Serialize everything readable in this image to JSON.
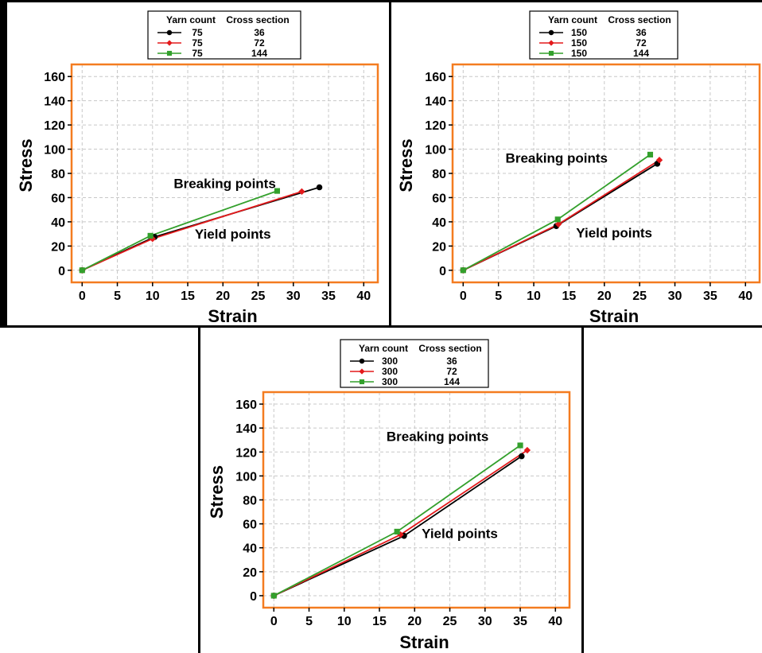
{
  "chart_data": [
    {
      "type": "line",
      "xlabel": "Strain",
      "ylabel": "Stress",
      "xlim": [
        -1.5,
        42
      ],
      "ylim": [
        -10,
        170
      ],
      "xticks": [
        0,
        5,
        10,
        15,
        20,
        25,
        30,
        35,
        40
      ],
      "yticks": [
        0,
        20,
        40,
        60,
        80,
        100,
        120,
        140,
        160
      ],
      "grid": true,
      "legend": {
        "placement": "top-center",
        "headers": [
          "Yarn count",
          "Cross section"
        ],
        "entries": [
          {
            "yarn_count": "75",
            "cross_section": "36",
            "color": "#000000",
            "marker": "circle"
          },
          {
            "yarn_count": "75",
            "cross_section": "72",
            "color": "#e31a1c",
            "marker": "diamond"
          },
          {
            "yarn_count": "75",
            "cross_section": "144",
            "color": "#33a02c",
            "marker": "square"
          }
        ]
      },
      "annotations": [
        {
          "text": "Breaking points",
          "x": 13,
          "y": 68
        },
        {
          "text": "Yield points",
          "x": 16,
          "y": 26
        }
      ],
      "series": [
        {
          "points": [
            [
              0,
              0
            ],
            [
              10.3,
              27.5
            ],
            [
              33.7,
              68.5
            ]
          ],
          "color": "#000000",
          "marker": "circle"
        },
        {
          "points": [
            [
              0,
              0
            ],
            [
              10.0,
              26
            ],
            [
              31.2,
              65
            ]
          ],
          "color": "#e31a1c",
          "marker": "diamond"
        },
        {
          "points": [
            [
              0,
              0
            ],
            [
              9.7,
              28.5
            ],
            [
              27.7,
              65.5
            ]
          ],
          "color": "#33a02c",
          "marker": "square"
        }
      ]
    },
    {
      "type": "line",
      "xlabel": "Strain",
      "ylabel": "Stress",
      "xlim": [
        -1.5,
        42
      ],
      "ylim": [
        -10,
        170
      ],
      "xticks": [
        0,
        5,
        10,
        15,
        20,
        25,
        30,
        35,
        40
      ],
      "yticks": [
        0,
        20,
        40,
        60,
        80,
        100,
        120,
        140,
        160
      ],
      "grid": true,
      "legend": {
        "placement": "top-center",
        "headers": [
          "Yarn count",
          "Cross section"
        ],
        "entries": [
          {
            "yarn_count": "150",
            "cross_section": "36",
            "color": "#000000",
            "marker": "circle"
          },
          {
            "yarn_count": "150",
            "cross_section": "72",
            "color": "#e31a1c",
            "marker": "diamond"
          },
          {
            "yarn_count": "150",
            "cross_section": "144",
            "color": "#33a02c",
            "marker": "square"
          }
        ]
      },
      "annotations": [
        {
          "text": "Breaking points",
          "x": 6,
          "y": 89
        },
        {
          "text": "Yield points",
          "x": 16,
          "y": 27
        }
      ],
      "series": [
        {
          "points": [
            [
              0,
              0
            ],
            [
              13.2,
              36.5
            ],
            [
              27.5,
              88
            ]
          ],
          "color": "#000000",
          "marker": "circle"
        },
        {
          "points": [
            [
              0,
              0
            ],
            [
              13.5,
              38
            ],
            [
              27.8,
              91
            ]
          ],
          "color": "#e31a1c",
          "marker": "diamond"
        },
        {
          "points": [
            [
              0,
              0
            ],
            [
              13.4,
              42
            ],
            [
              26.5,
              95.5
            ]
          ],
          "color": "#33a02c",
          "marker": "square"
        }
      ]
    },
    {
      "type": "line",
      "xlabel": "Strain",
      "ylabel": "Stress",
      "xlim": [
        -1.5,
        42
      ],
      "ylim": [
        -10,
        170
      ],
      "xticks": [
        0,
        5,
        10,
        15,
        20,
        25,
        30,
        35,
        40
      ],
      "yticks": [
        0,
        20,
        40,
        60,
        80,
        100,
        120,
        140,
        160
      ],
      "grid": true,
      "legend": {
        "placement": "top-center",
        "headers": [
          "Yarn count",
          "Cross section"
        ],
        "entries": [
          {
            "yarn_count": "300",
            "cross_section": "36",
            "color": "#000000",
            "marker": "circle"
          },
          {
            "yarn_count": "300",
            "cross_section": "72",
            "color": "#e31a1c",
            "marker": "diamond"
          },
          {
            "yarn_count": "300",
            "cross_section": "144",
            "color": "#33a02c",
            "marker": "square"
          }
        ]
      },
      "annotations": [
        {
          "text": "Breaking points",
          "x": 16,
          "y": 129
        },
        {
          "text": "Yield points",
          "x": 21,
          "y": 48
        }
      ],
      "series": [
        {
          "points": [
            [
              0,
              0
            ],
            [
              18.5,
              50
            ],
            [
              35.2,
              116.5
            ]
          ],
          "color": "#000000",
          "marker": "circle"
        },
        {
          "points": [
            [
              0,
              0
            ],
            [
              18.0,
              51
            ],
            [
              36.0,
              121.5
            ]
          ],
          "color": "#e31a1c",
          "marker": "diamond"
        },
        {
          "points": [
            [
              0,
              0
            ],
            [
              17.5,
              53.5
            ],
            [
              35.0,
              125.5
            ]
          ],
          "color": "#33a02c",
          "marker": "square"
        }
      ]
    }
  ]
}
